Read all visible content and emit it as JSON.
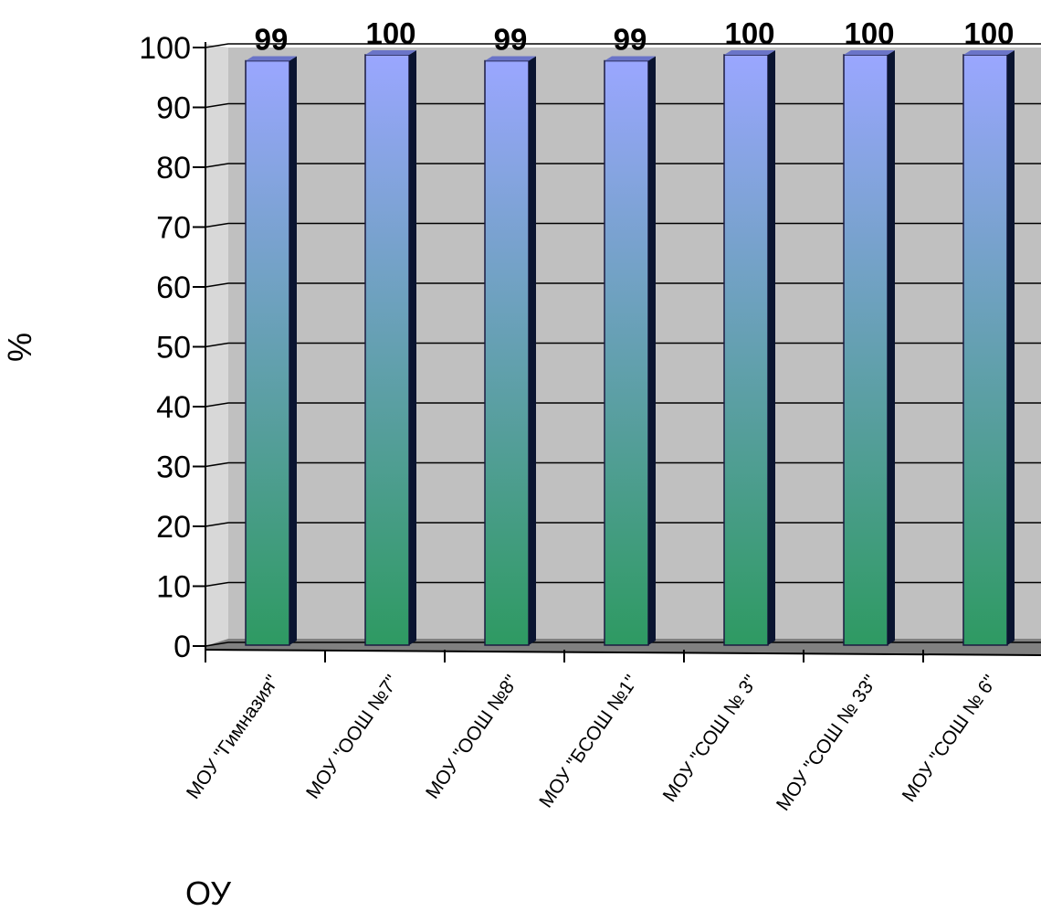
{
  "chart_data": {
    "type": "bar",
    "style": "3d-column",
    "categories": [
      "МОУ \"Гимназия\"",
      "МОУ \"ООШ №7\"",
      "МОУ \"ООШ №8\"",
      "МОУ \"БСОШ №1\"",
      "МОУ \"СОШ № 3\"",
      "МОУ \"СОШ № 33\"",
      "МОУ \"СОШ № 6\""
    ],
    "values": [
      99,
      100,
      99,
      99,
      100,
      100,
      100
    ],
    "data_labels": [
      "99",
      "100",
      "99",
      "99",
      "100",
      "100",
      "100"
    ],
    "xlabel": "ОУ",
    "ylabel": "%",
    "ylim": [
      0,
      100
    ],
    "yticks": [
      0,
      10,
      20,
      30,
      40,
      50,
      60,
      70,
      80,
      90,
      100
    ],
    "grid": true,
    "legend": "none",
    "colors": {
      "bar_top": "#9aa6ff",
      "bar_bottom": "#2e9a62",
      "bar_side": "#0a1430",
      "wall": "#c0c0c0",
      "floor": "#808080",
      "grid": "#000000"
    }
  }
}
